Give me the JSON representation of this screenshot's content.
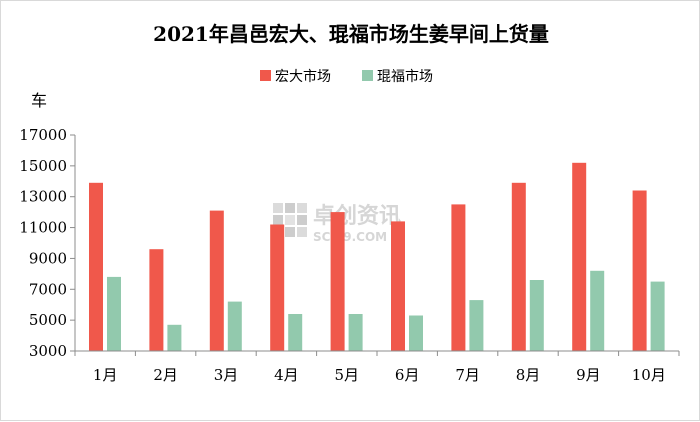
{
  "chart_data": {
    "type": "bar",
    "title": "2021年昌邑宏大、琨福市场生姜早间上货量",
    "ylabel": "车",
    "xlabel": "",
    "categories": [
      "1月",
      "2月",
      "3月",
      "4月",
      "5月",
      "6月",
      "7月",
      "8月",
      "9月",
      "10月"
    ],
    "series": [
      {
        "name": "宏大市场",
        "color": "#f0584b",
        "values": [
          13900,
          9600,
          12100,
          11200,
          12000,
          11400,
          12500,
          13900,
          15200,
          13400
        ]
      },
      {
        "name": "琨福市场",
        "color": "#92c9ad",
        "values": [
          7800,
          4700,
          6200,
          5400,
          5400,
          5300,
          6300,
          7600,
          8200,
          7500
        ]
      }
    ],
    "ylim": [
      3000,
      17000
    ],
    "yticks": [
      3000,
      5000,
      7000,
      9000,
      11000,
      13000,
      15000,
      17000
    ],
    "grid": false,
    "legend_position": "top-center"
  },
  "watermark": {
    "text": "卓创资讯",
    "subtext": "SCI99.COM"
  }
}
